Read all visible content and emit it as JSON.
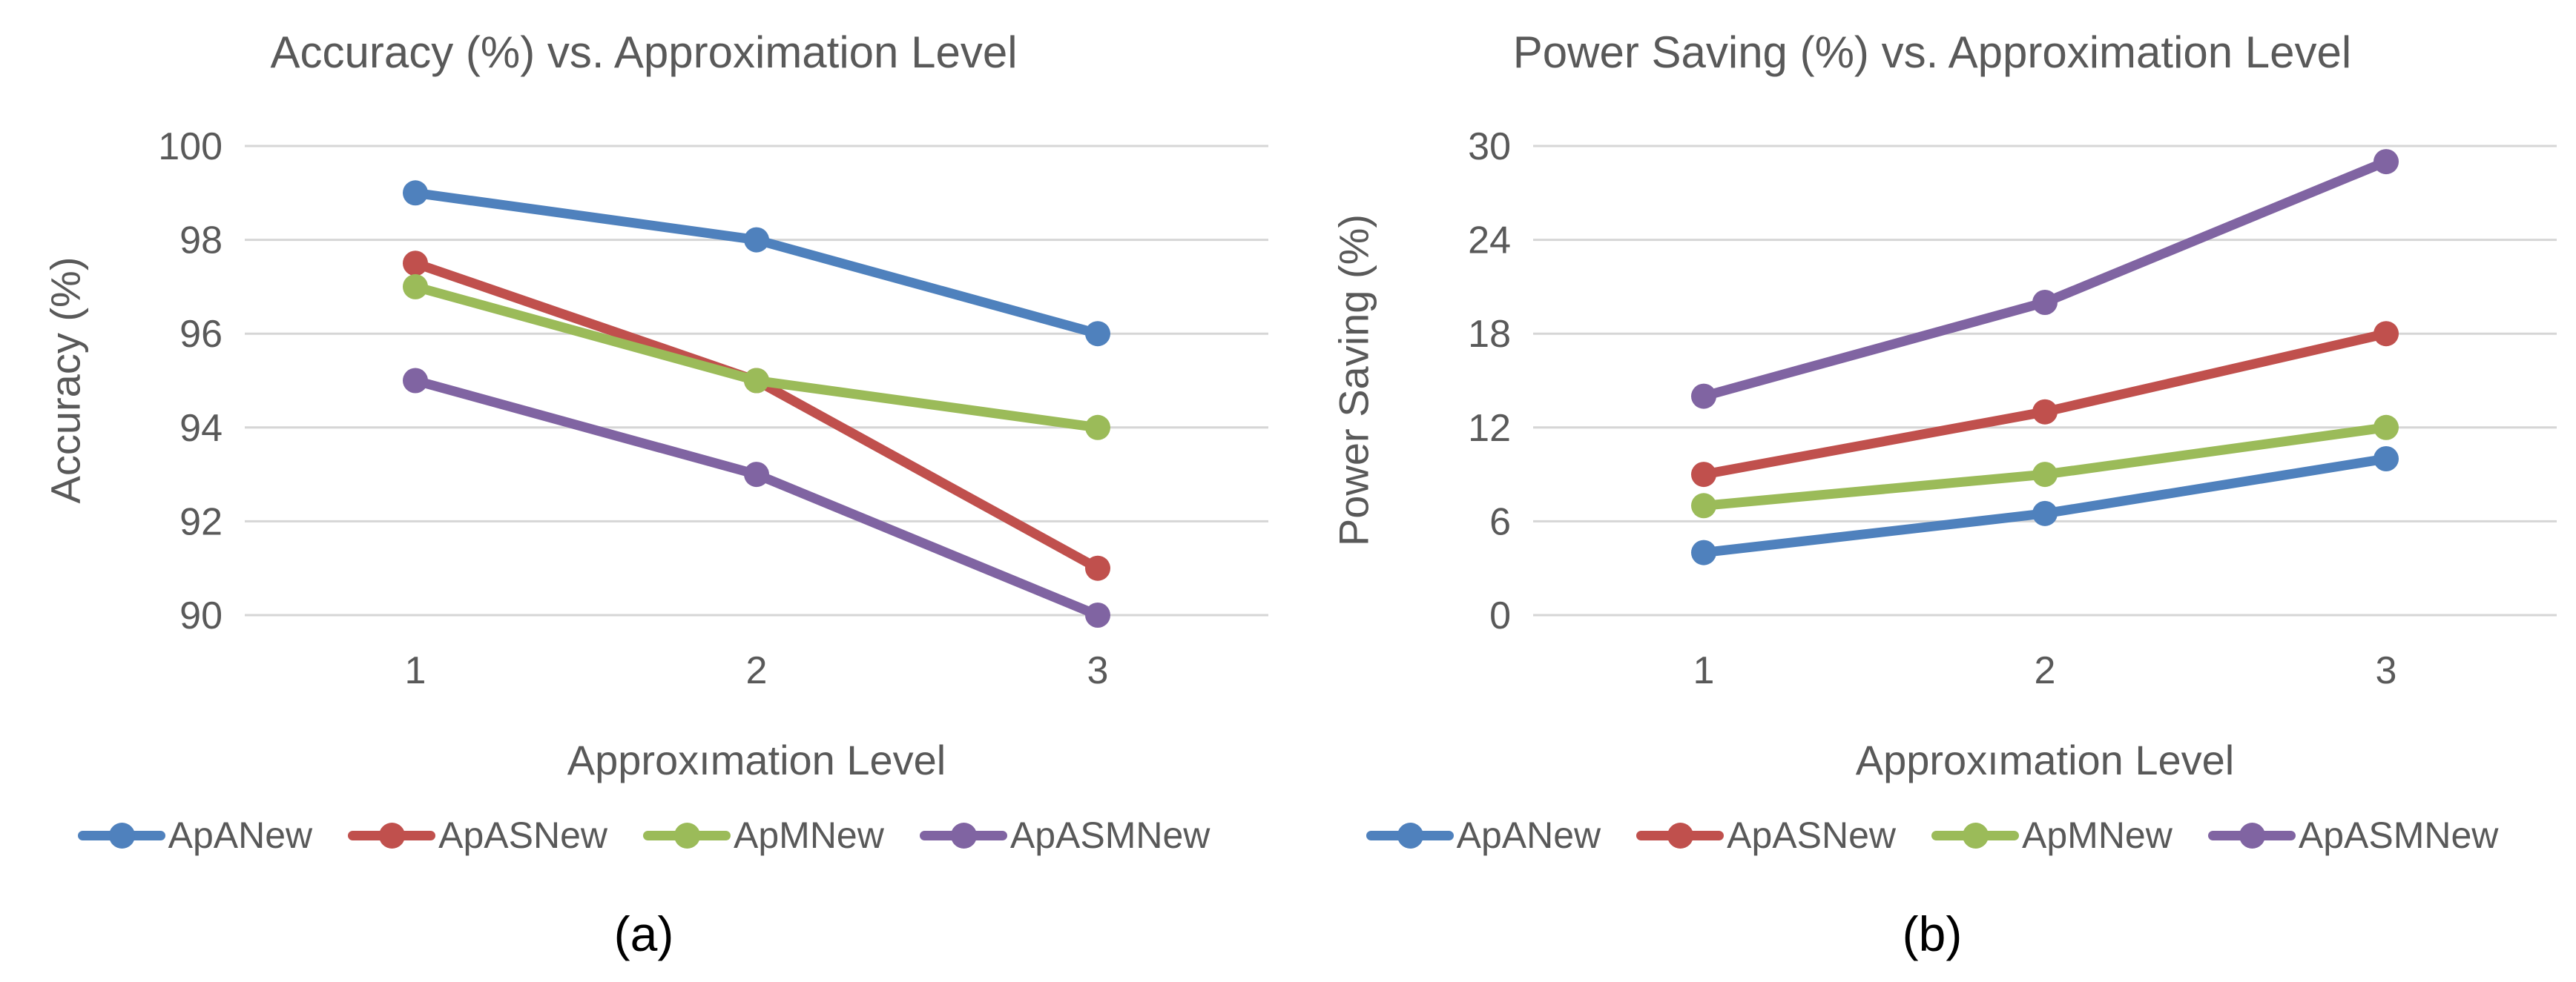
{
  "style": {
    "background": "#ffffff",
    "grid_color": "#D6D6D6",
    "axis_text_color": "#595959",
    "caption_color": "#000000"
  },
  "chart_data": [
    {
      "type": "line",
      "title": "Accuracy (%) vs. Approximation Level",
      "xlabel": "Approxımation Level",
      "ylabel": "Accuracy (%)",
      "caption": "(a)",
      "categories": [
        "1",
        "2",
        "3"
      ],
      "ylim": [
        90,
        100
      ],
      "yticks": [
        90,
        92,
        94,
        96,
        98,
        100
      ],
      "grid": true,
      "legend_position": "bottom",
      "series": [
        {
          "name": "ApANew",
          "color": "#4F81BD",
          "values": [
            99,
            98,
            96
          ]
        },
        {
          "name": "ApASNew",
          "color": "#C0504D",
          "values": [
            97.5,
            95,
            91
          ]
        },
        {
          "name": "ApMNew",
          "color": "#9BBB59",
          "values": [
            97,
            95,
            94
          ]
        },
        {
          "name": "ApASMNew",
          "color": "#8064A2",
          "values": [
            95,
            93,
            90
          ]
        }
      ]
    },
    {
      "type": "line",
      "title": "Power Saving (%) vs. Approximation Level",
      "xlabel": "Approxımation Level",
      "ylabel": "Power Saving (%)",
      "caption": "(b)",
      "categories": [
        "1",
        "2",
        "3"
      ],
      "ylim": [
        0,
        30
      ],
      "yticks": [
        0,
        6,
        12,
        18,
        24,
        30
      ],
      "grid": true,
      "legend_position": "bottom",
      "series": [
        {
          "name": "ApANew",
          "color": "#4F81BD",
          "values": [
            4,
            6.5,
            10
          ]
        },
        {
          "name": "ApASNew",
          "color": "#C0504D",
          "values": [
            9,
            13,
            18
          ]
        },
        {
          "name": "ApMNew",
          "color": "#9BBB59",
          "values": [
            7,
            9,
            12
          ]
        },
        {
          "name": "ApASMNew",
          "color": "#8064A2",
          "values": [
            14,
            20,
            29
          ]
        }
      ]
    }
  ]
}
